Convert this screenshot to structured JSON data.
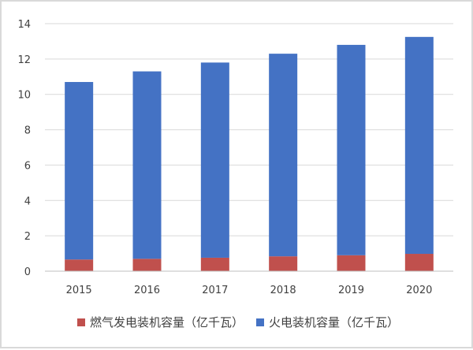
{
  "chart_data": {
    "type": "bar",
    "stacked": true,
    "categories": [
      "2015",
      "2016",
      "2017",
      "2018",
      "2019",
      "2020"
    ],
    "series": [
      {
        "name": "燃气发电装机容量（亿千瓦）",
        "color": "#c0504d",
        "values": [
          0.66,
          0.7,
          0.76,
          0.84,
          0.9,
          0.98
        ]
      },
      {
        "name": "火电装机容量（亿千瓦）",
        "color": "#4472c4",
        "values": [
          10.04,
          10.6,
          11.04,
          11.46,
          11.9,
          12.27
        ]
      }
    ],
    "ylim": [
      0,
      14
    ],
    "yticks": [
      "0",
      "2",
      "4",
      "6",
      "8",
      "10",
      "12",
      "14"
    ],
    "grid": true,
    "legend_position": "bottom",
    "title": "",
    "xlabel": "",
    "ylabel": ""
  }
}
